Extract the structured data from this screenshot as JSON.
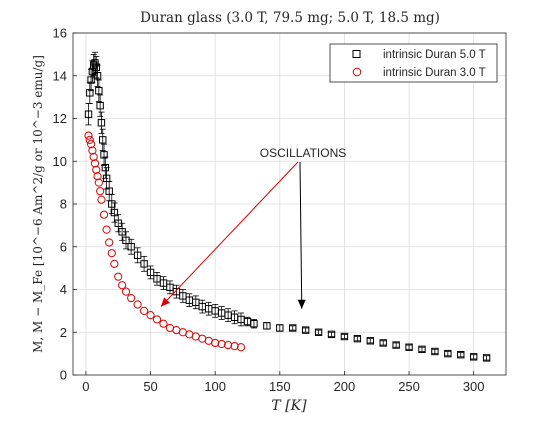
{
  "chart_data": {
    "type": "scatter",
    "title": "Duran glass (3.0 T, 79.5 mg; 5.0 T, 18.5 mg)",
    "xlabel": "T [K]",
    "ylabel": "M, M − M_Fe [10^−6 Am^2/g or 10^−3 emu/g]",
    "xlim": [
      -10,
      325
    ],
    "ylim": [
      0,
      16
    ],
    "xticks": [
      0,
      50,
      100,
      150,
      200,
      250,
      300
    ],
    "yticks": [
      0,
      2,
      4,
      6,
      8,
      10,
      12,
      14,
      16
    ],
    "grid": true,
    "legend_position": "top-right",
    "annotation": "OSCILLATIONS",
    "annotation_arrow_targets": [
      {
        "color": "#e00000",
        "x": 58,
        "y": 3.2
      },
      {
        "color": "#000000",
        "x": 167,
        "y": 3.1
      }
    ],
    "series": [
      {
        "name": "intrinsic Duran 5.0 T",
        "marker": "square",
        "color": "#000000",
        "has_error_bars": true,
        "x": [
          2,
          3,
          4,
          5,
          6,
          7,
          8,
          9,
          10,
          11,
          12,
          13,
          14,
          15,
          16,
          18,
          20,
          22,
          25,
          28,
          31,
          35,
          40,
          45,
          50,
          55,
          60,
          65,
          70,
          75,
          80,
          85,
          90,
          95,
          100,
          105,
          110,
          115,
          120,
          125,
          130,
          140,
          150,
          160,
          170,
          180,
          190,
          200,
          210,
          220,
          230,
          240,
          250,
          260,
          270,
          280,
          290,
          300,
          310
        ],
        "y": [
          12.2,
          13.2,
          13.8,
          14.2,
          14.5,
          14.6,
          14.4,
          14.0,
          13.3,
          12.6,
          11.8,
          11.0,
          10.3,
          9.7,
          9.2,
          8.6,
          8.0,
          7.6,
          7.1,
          6.7,
          6.3,
          6.0,
          5.6,
          5.2,
          4.8,
          4.5,
          4.3,
          4.1,
          3.9,
          3.7,
          3.5,
          3.4,
          3.2,
          3.1,
          3.0,
          2.9,
          2.8,
          2.7,
          2.6,
          2.5,
          2.4,
          2.3,
          2.2,
          2.2,
          2.1,
          2.0,
          1.9,
          1.8,
          1.7,
          1.6,
          1.5,
          1.4,
          1.3,
          1.2,
          1.1,
          1.0,
          0.95,
          0.85,
          0.8
        ],
        "yerr": [
          0.5,
          0.5,
          0.5,
          0.5,
          0.5,
          0.5,
          0.5,
          0.5,
          0.5,
          0.5,
          0.5,
          0.5,
          0.5,
          0.5,
          0.5,
          0.45,
          0.45,
          0.45,
          0.4,
          0.4,
          0.4,
          0.35,
          0.35,
          0.35,
          0.3,
          0.3,
          0.3,
          0.3,
          0.3,
          0.3,
          0.3,
          0.3,
          0.3,
          0.3,
          0.3,
          0.3,
          0.3,
          0.3,
          0.3,
          0.2,
          0.2,
          0.15,
          0.15,
          0.1,
          0.1,
          0.1,
          0.1,
          0.1,
          0.1,
          0.1,
          0.1,
          0.1,
          0.1,
          0.1,
          0.1,
          0.1,
          0.1,
          0.1,
          0.1
        ]
      },
      {
        "name": "intrinsic Duran 3.0 T",
        "marker": "circle",
        "color": "#e00000",
        "has_error_bars": false,
        "x": [
          2,
          3,
          4,
          5,
          6,
          7,
          8,
          9,
          10,
          11,
          12,
          14,
          16,
          18,
          20,
          22,
          25,
          28,
          31,
          35,
          40,
          45,
          50,
          55,
          60,
          65,
          70,
          75,
          80,
          85,
          90,
          95,
          100,
          105,
          110,
          115,
          120
        ],
        "y": [
          11.2,
          11.0,
          10.8,
          10.5,
          10.2,
          9.9,
          9.6,
          9.3,
          9.0,
          8.6,
          8.2,
          7.5,
          6.8,
          6.2,
          5.7,
          5.2,
          4.6,
          4.2,
          3.9,
          3.6,
          3.3,
          3.0,
          2.8,
          2.6,
          2.4,
          2.2,
          2.1,
          2.0,
          1.9,
          1.8,
          1.7,
          1.6,
          1.5,
          1.45,
          1.4,
          1.35,
          1.3
        ]
      }
    ]
  }
}
